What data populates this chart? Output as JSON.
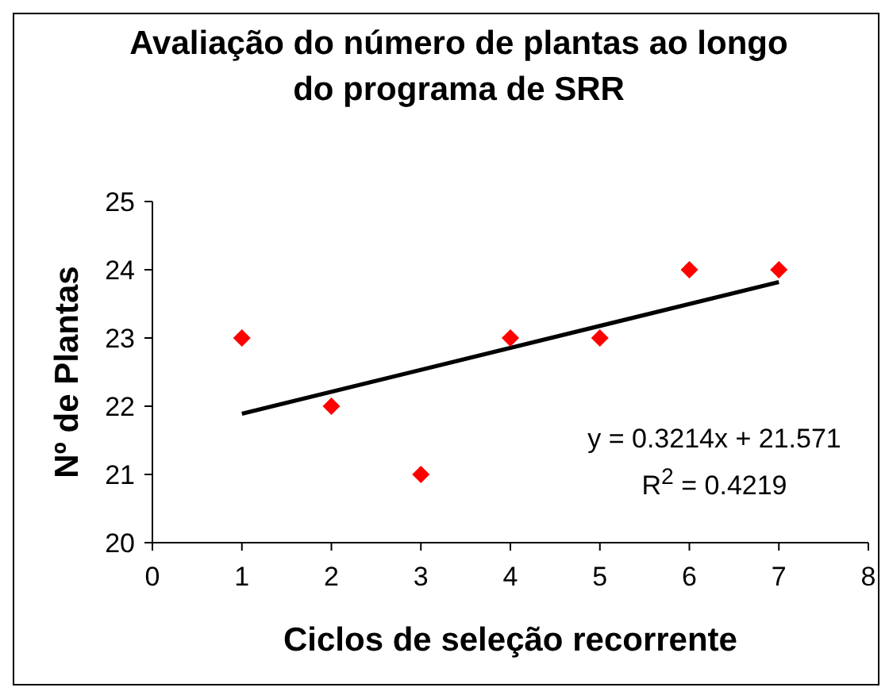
{
  "chart_data": {
    "type": "scatter",
    "title": "Avaliação do número de plantas ao longo do programa de SRR",
    "xlabel": "Ciclos de seleção recorrente",
    "ylabel": "Nº de Plantas",
    "x": [
      1,
      2,
      3,
      4,
      5,
      6,
      7
    ],
    "series": [
      {
        "color": "#ff0000",
        "marker": "diamond",
        "values": [
          23,
          22,
          21,
          23,
          23,
          24,
          24
        ]
      },
      {
        "type": "line",
        "color": "#000000",
        "marker": "none",
        "x": [
          1,
          7
        ],
        "values": [
          21.89,
          23.82
        ]
      }
    ],
    "xlim": [
      0,
      8
    ],
    "xticks": [
      0,
      1,
      2,
      3,
      4,
      5,
      6,
      7,
      8
    ],
    "ylim": [
      20,
      25
    ],
    "yticks": [
      20,
      21,
      22,
      23,
      24,
      25
    ],
    "annotations": [
      "y = 0.3214x + 21.571",
      "R$^{2}$ = 0.4219"
    ]
  }
}
